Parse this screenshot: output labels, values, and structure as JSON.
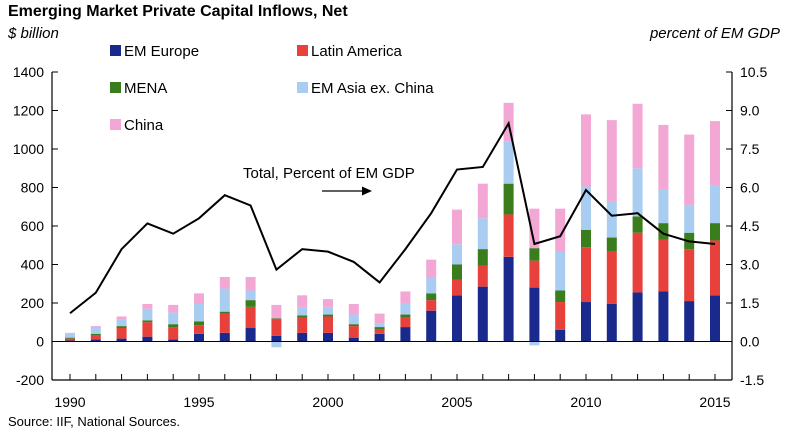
{
  "title": "Emerging Market Private Capital Inflows, Net",
  "left_axis_label": "$ billion",
  "right_axis_label": "percent of EM GDP",
  "source": "Source: IIF, National Sources.",
  "annotation": "Total, Percent of EM GDP",
  "chart_data": {
    "type": "bar",
    "stacked": true,
    "title": "Emerging Market Private Capital Inflows, Net",
    "ylabel": "$ billion",
    "y2label": "percent of EM GDP",
    "ylim": [
      -200,
      1400
    ],
    "y2lim": [
      -1.5,
      10.5
    ],
    "yticks": [
      -200,
      0,
      200,
      400,
      600,
      800,
      1000,
      1200,
      1400
    ],
    "y2ticks": [
      "-1.5",
      "0.0",
      "1.5",
      "3.0",
      "4.5",
      "6.0",
      "7.5",
      "9.0",
      "10.5"
    ],
    "xticks": [
      1990,
      1995,
      2000,
      2005,
      2010,
      2015
    ],
    "legend": "top-left",
    "categories": [
      1990,
      1991,
      1992,
      1993,
      1994,
      1995,
      1996,
      1997,
      1998,
      1999,
      2000,
      2001,
      2002,
      2003,
      2004,
      2005,
      2006,
      2007,
      2008,
      2009,
      2010,
      2011,
      2012,
      2013,
      2014,
      2015
    ],
    "series": [
      {
        "name": "EM Europe",
        "color": "#1a2a8c",
        "values": [
          5,
          10,
          15,
          25,
          10,
          40,
          45,
          70,
          30,
          45,
          45,
          20,
          40,
          75,
          160,
          240,
          285,
          440,
          280,
          60,
          205,
          195,
          255,
          260,
          210,
          240
        ]
      },
      {
        "name": "Latin America",
        "color": "#e8413c",
        "values": [
          10,
          20,
          55,
          75,
          65,
          45,
          100,
          110,
          85,
          80,
          85,
          60,
          25,
          50,
          55,
          80,
          110,
          220,
          140,
          145,
          285,
          275,
          310,
          270,
          270,
          285
        ]
      },
      {
        "name": "MENA",
        "color": "#3a7d1c",
        "values": [
          5,
          10,
          10,
          10,
          15,
          20,
          10,
          35,
          5,
          10,
          10,
          10,
          10,
          15,
          35,
          80,
          85,
          160,
          65,
          60,
          90,
          70,
          85,
          85,
          85,
          90
        ]
      },
      {
        "name": "EM Asia ex. China",
        "color": "#a9cdf0",
        "values": [
          20,
          30,
          35,
          60,
          60,
          90,
          120,
          50,
          -30,
          45,
          40,
          50,
          20,
          60,
          80,
          105,
          160,
          220,
          -20,
          200,
          225,
          190,
          250,
          175,
          145,
          195
        ]
      },
      {
        "name": "China",
        "color": "#f2a7d4",
        "values": [
          5,
          10,
          15,
          25,
          40,
          55,
          60,
          70,
          70,
          60,
          40,
          55,
          50,
          60,
          95,
          180,
          180,
          200,
          205,
          225,
          375,
          420,
          335,
          335,
          365,
          335
        ]
      }
    ],
    "line": {
      "name": "Total, Percent of EM GDP",
      "axis": "right",
      "color": "#000000",
      "values": [
        1.1,
        1.9,
        3.6,
        4.6,
        4.2,
        4.8,
        5.7,
        5.3,
        2.8,
        3.6,
        3.5,
        3.1,
        2.3,
        3.6,
        5.0,
        6.7,
        6.8,
        8.5,
        3.8,
        4.1,
        5.9,
        4.9,
        5.0,
        4.2,
        3.9,
        3.8
      ]
    }
  }
}
